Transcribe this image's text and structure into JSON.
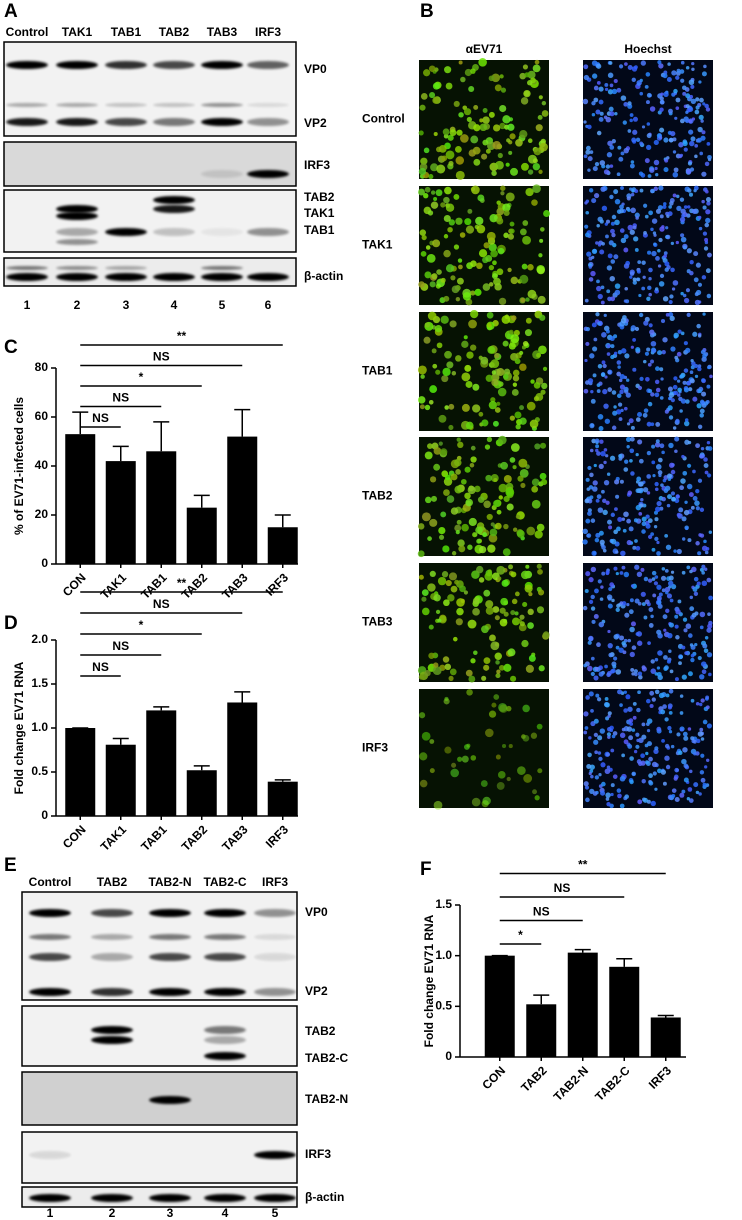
{
  "panel_a": {
    "letter": "A",
    "lanes": [
      "Control",
      "TAK1",
      "TAB1",
      "TAB2",
      "TAB3",
      "IRF3"
    ],
    "lane_numbers": [
      1,
      2,
      3,
      4,
      5,
      6
    ],
    "band_labels": [
      "VP0",
      "VP2",
      "IRF3",
      "TAB2",
      "TAK1",
      "TAB1",
      "β-actin"
    ]
  },
  "panel_b": {
    "letter": "B",
    "columns": [
      "αEV71",
      "Hoechst"
    ],
    "rows": [
      "Control",
      "TAK1",
      "TAB1",
      "TAB2",
      "TAB3",
      "IRF3"
    ]
  },
  "panel_e": {
    "letter": "E",
    "lanes": [
      "Control",
      "TAB2",
      "TAB2-N",
      "TAB2-C",
      "IRF3"
    ],
    "lane_numbers": [
      1,
      2,
      3,
      4,
      5
    ],
    "band_labels": [
      "VP0",
      "VP2",
      "TAB2",
      "TAB2-C",
      "TAB2-N",
      "IRF3",
      "β-actin"
    ]
  },
  "chart_data": [
    {
      "type": "bar",
      "letter": "C",
      "y_label": "% of EV71-infected cells",
      "color": "#000000",
      "categories": [
        "CON",
        "TAK1",
        "TAB1",
        "TAB2",
        "TAB3",
        "IRF3"
      ],
      "values": [
        53,
        42,
        46,
        23,
        52,
        15
      ],
      "errors": [
        9,
        6,
        12,
        5,
        11,
        5
      ],
      "ylim": [
        0,
        80
      ],
      "yticks": [
        0,
        20,
        40,
        60,
        80
      ],
      "brackets": [
        {
          "label": "NS",
          "to": 1
        },
        {
          "label": "NS",
          "to": 2
        },
        {
          "label": "*",
          "to": 3
        },
        {
          "label": "NS",
          "to": 4
        },
        {
          "label": "**",
          "to": 5
        }
      ]
    },
    {
      "type": "bar",
      "letter": "D",
      "y_label": "Fold change EV71 RNA",
      "color": "#000000",
      "categories": [
        "CON",
        "TAK1",
        "TAB1",
        "TAB2",
        "TAB3",
        "IRF3"
      ],
      "values": [
        1.0,
        0.81,
        1.2,
        0.52,
        1.29,
        0.39
      ],
      "errors": [
        0,
        0.07,
        0.04,
        0.05,
        0.12,
        0.02
      ],
      "ylim": [
        0,
        2
      ],
      "yticks": [
        0,
        0.5,
        {
          "value": 1,
          "label": "1.0"
        },
        1.5,
        {
          "value": 2,
          "label": "2.0"
        }
      ],
      "brackets": [
        {
          "label": "NS",
          "to": 1
        },
        {
          "label": "NS",
          "to": 2
        },
        {
          "label": "*",
          "to": 3
        },
        {
          "label": "NS",
          "to": 4
        },
        {
          "label": "**",
          "to": 5
        }
      ]
    },
    {
      "type": "bar",
      "letter": "F",
      "y_label": "Fold change EV71 RNA",
      "color": "#000000",
      "categories": [
        "CON",
        "TAB2",
        "TAB2-N",
        "TAB2-C",
        "IRF3"
      ],
      "values": [
        1.0,
        0.52,
        1.03,
        0.89,
        0.39
      ],
      "errors": [
        0,
        0.09,
        0.03,
        0.08,
        0.02
      ],
      "ylim": [
        0,
        1.5
      ],
      "yticks": [
        0,
        0.5,
        {
          "value": 1,
          "label": "1.0"
        },
        1.5
      ],
      "brackets": [
        {
          "label": "*",
          "to": 1
        },
        {
          "label": "NS",
          "to": 2
        },
        {
          "label": "NS",
          "to": 3
        },
        {
          "label": "**",
          "to": 4
        }
      ]
    }
  ]
}
